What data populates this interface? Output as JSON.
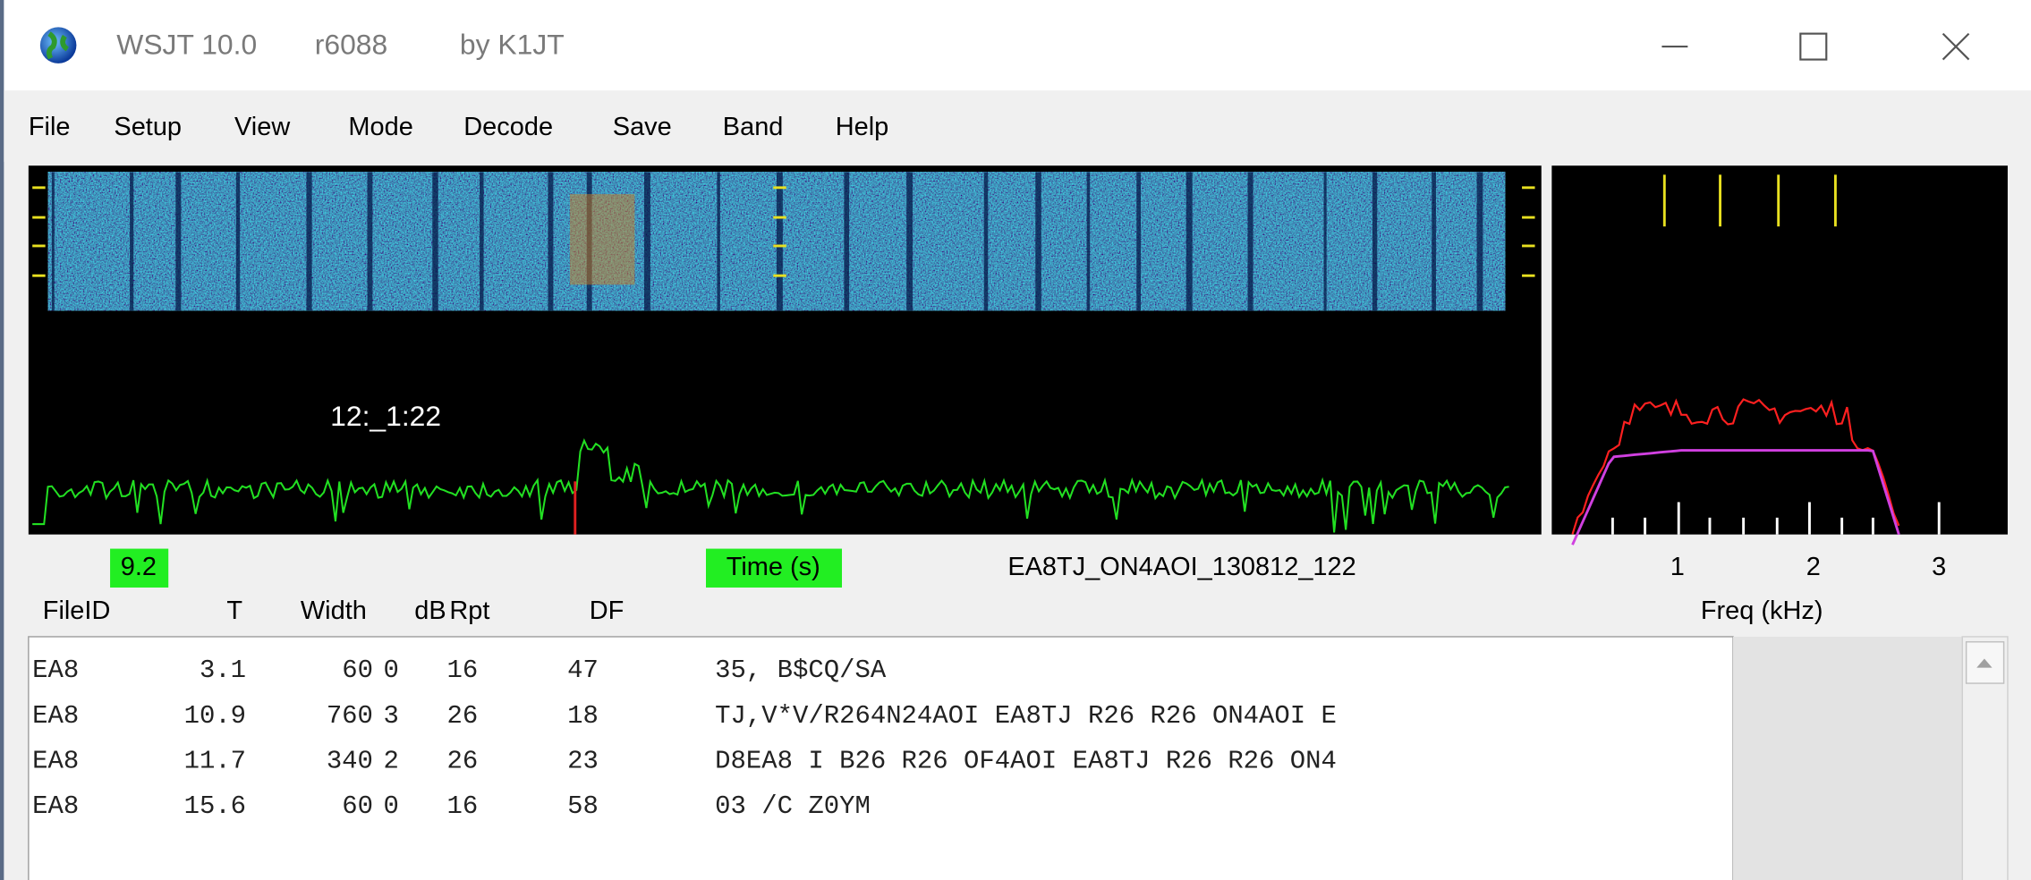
{
  "title_bar": {
    "app": "WSJT 10.0",
    "revision": "r6088",
    "author": "by K1JT"
  },
  "menu": [
    "File",
    "Setup",
    "View",
    "Mode",
    "Decode",
    "Save",
    "Band",
    "Help"
  ],
  "plot": {
    "time_label": "12:_1:22"
  },
  "status": {
    "level": "9.2",
    "x_axis_label": "Time (s)",
    "file_name": "EA8TJ_ON4AOI_130812_122",
    "freq_ticks": [
      "1",
      "2",
      "3"
    ],
    "freq_axis_label": "Freq (kHz)"
  },
  "table": {
    "columns": [
      "FileID",
      "T",
      "Width",
      "dB",
      "Rpt",
      "DF"
    ],
    "rows": [
      [
        "EA8",
        "3.1",
        "60",
        "0",
        "16",
        "47",
        "35, B$CQ/SA"
      ],
      [
        "EA8",
        "10.9",
        "760",
        "3",
        "26",
        "18",
        "TJ,V*V/R264N24AOI EA8TJ R26 R26 ON4AOI E"
      ],
      [
        "EA8",
        "11.7",
        "340",
        "2",
        "26",
        "23",
        "D8EA8 I B26 R26 OF4AOI EA8TJ R26 R26 ON4"
      ],
      [
        "EA8",
        "15.6",
        "60",
        "0",
        "16",
        "58",
        "03  /C Z0YM"
      ]
    ]
  }
}
